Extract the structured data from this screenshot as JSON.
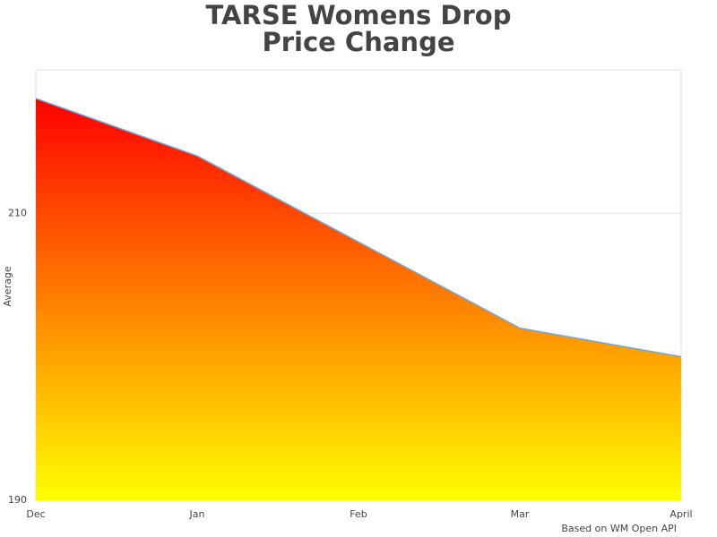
{
  "chart_data": {
    "type": "area",
    "title": "TARSE Womens Drop\nPrice Change",
    "y_label": "Average",
    "credit": "Based on WM Open API",
    "categories": [
      "Dec",
      "Jan",
      "Feb",
      "Mar",
      "April"
    ],
    "values": [
      218,
      214,
      208,
      202,
      200
    ],
    "line_color": "#6fa8dc",
    "gradient": [
      "#ff0000",
      "#ffff00"
    ],
    "ylim": [
      190,
      220
    ],
    "yticks": [
      190,
      210
    ],
    "grid": true
  }
}
